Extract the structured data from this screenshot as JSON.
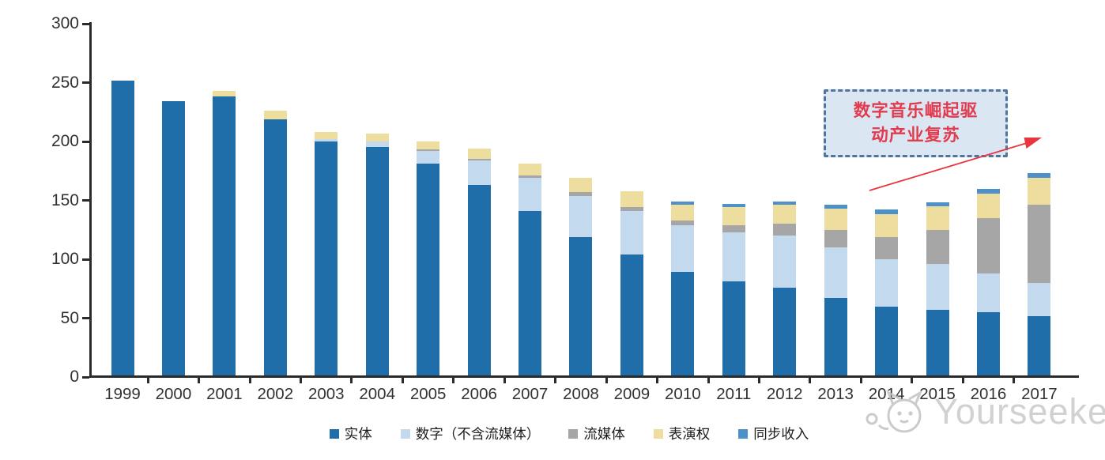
{
  "annotation": {
    "line1": "数字音乐崛起驱",
    "line2": "动产业复苏",
    "text_color": "#e23b4e",
    "box_fill": "#dbe6f3",
    "border_color": "#4f74a0",
    "arrow_color": "#e8353f"
  },
  "watermark": {
    "text": "Yourseeker",
    "logo": "cat-logo-icon",
    "color": "#c9c9c9"
  },
  "chart_data": {
    "type": "bar",
    "stacked": true,
    "title": "",
    "xlabel": "",
    "ylabel": "",
    "ylim": [
      0,
      300
    ],
    "y_ticks": [
      0,
      50,
      100,
      150,
      200,
      250,
      300
    ],
    "grid": false,
    "legend_position": "bottom",
    "categories": [
      "1999",
      "2000",
      "2001",
      "2002",
      "2003",
      "2004",
      "2005",
      "2006",
      "2007",
      "2008",
      "2009",
      "2010",
      "2011",
      "2012",
      "2013",
      "2014",
      "2015",
      "2016",
      "2017"
    ],
    "series": [
      {
        "name": "实体",
        "color": "#1F6DA9",
        "values": [
          252,
          234,
          238,
          219,
          200,
          195,
          181,
          163,
          141,
          119,
          104,
          89,
          81,
          76,
          67,
          60,
          57,
          55,
          52
        ]
      },
      {
        "name": "数字（不含流媒体）",
        "color": "#C3D9EE",
        "values": [
          0,
          0,
          0,
          0,
          2,
          5,
          11,
          21,
          28,
          35,
          37,
          40,
          42,
          44,
          43,
          40,
          39,
          33,
          28
        ]
      },
      {
        "name": "流媒体",
        "color": "#A6A6A6",
        "values": [
          0,
          0,
          0,
          0,
          0,
          0,
          1,
          1,
          2,
          3,
          3,
          4,
          6,
          10,
          15,
          19,
          29,
          47,
          66
        ]
      },
      {
        "name": "表演权",
        "color": "#EDDEA0",
        "values": [
          0,
          0,
          5,
          7,
          6,
          7,
          7,
          9,
          10,
          12,
          14,
          13,
          15,
          16,
          18,
          19,
          20,
          21,
          23
        ]
      },
      {
        "name": "同步收入",
        "color": "#4E91C8",
        "values": [
          0,
          0,
          0,
          0,
          0,
          0,
          0,
          0,
          0,
          0,
          0,
          3,
          3,
          3,
          3,
          4,
          3,
          4,
          4
        ]
      }
    ]
  }
}
